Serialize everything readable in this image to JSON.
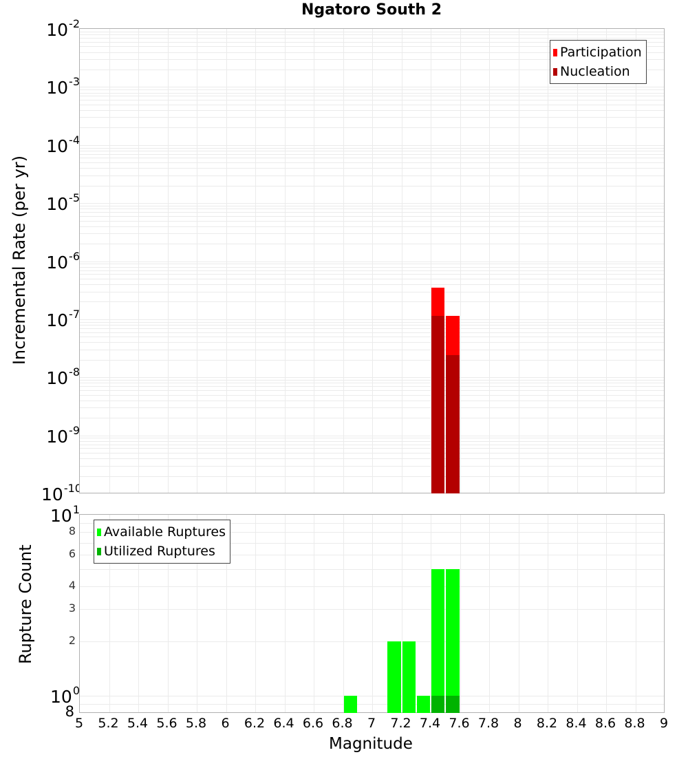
{
  "title": "Ngatoro South 2",
  "colors": {
    "participation": "#ff0000",
    "nucleation": "#b30000",
    "available": "#00ff00",
    "utilized": "#00b300",
    "grid": "#ebebeb",
    "frame": "#b0b0b0"
  },
  "top_plot": {
    "ylabel": "Incremental Rate (per yr)",
    "ytick_exponents": [
      "-2",
      "-3",
      "-4",
      "-5",
      "-6",
      "-7",
      "-8",
      "-9",
      "-10"
    ],
    "legend": [
      {
        "label": "Participation",
        "color_key": "participation"
      },
      {
        "label": "Nucleation",
        "color_key": "nucleation"
      }
    ]
  },
  "bottom_plot": {
    "ylabel": "Rupture Count",
    "ytick_labels": [
      "8",
      "6",
      "4",
      "3",
      "2",
      "8"
    ],
    "major_ticks": [
      {
        "base": "10",
        "exp": "1"
      },
      {
        "base": "10",
        "exp": "0"
      }
    ],
    "legend": [
      {
        "label": "Available Ruptures",
        "color_key": "available"
      },
      {
        "label": "Utilized Ruptures",
        "color_key": "utilized"
      }
    ]
  },
  "xaxis": {
    "label": "Magnitude",
    "ticks": [
      "5",
      "5.2",
      "5.4",
      "5.6",
      "5.8",
      "6",
      "6.2",
      "6.4",
      "6.6",
      "6.8",
      "7",
      "7.2",
      "7.4",
      "7.6",
      "7.8",
      "8",
      "8.2",
      "8.4",
      "8.6",
      "8.8",
      "9"
    ]
  },
  "chart_data": [
    {
      "type": "bar",
      "title": "Ngatoro South 2",
      "xlabel": "Magnitude",
      "ylabel": "Incremental Rate (per yr)",
      "yscale": "log",
      "xlim": [
        5,
        9
      ],
      "ylim": [
        1e-10,
        0.01
      ],
      "bin_width": 0.1,
      "grid": true,
      "legend_position": "top-right",
      "x": [
        7.45,
        7.55
      ],
      "series": [
        {
          "name": "Participation",
          "color": "#ff0000",
          "values": [
            3.5e-07,
            1.15e-07
          ]
        },
        {
          "name": "Nucleation",
          "color": "#b30000",
          "values": [
            1.15e-07,
            2.4e-08
          ]
        }
      ]
    },
    {
      "type": "bar",
      "xlabel": "Magnitude",
      "ylabel": "Rupture Count",
      "yscale": "log",
      "xlim": [
        5,
        9
      ],
      "ylim": [
        0.8,
        10
      ],
      "bin_width": 0.1,
      "grid": true,
      "legend_position": "top-left",
      "x": [
        6.85,
        7.15,
        7.25,
        7.35,
        7.45,
        7.55
      ],
      "series": [
        {
          "name": "Available Ruptures",
          "color": "#00ff00",
          "values": [
            1,
            2,
            2,
            1,
            5,
            5
          ]
        },
        {
          "name": "Utilized Ruptures",
          "color": "#00b300",
          "values": [
            0,
            0,
            0,
            0,
            1,
            1
          ]
        }
      ]
    }
  ]
}
